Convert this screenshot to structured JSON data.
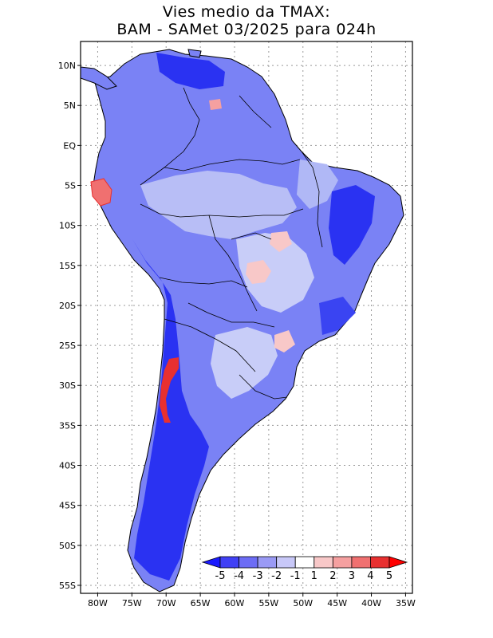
{
  "title": {
    "line1": "Vies medio da TMAX:",
    "line2": "BAM - SAMet 03/2025  para 024h"
  },
  "map": {
    "lat_ticks": [
      "10N",
      "5N",
      "EQ",
      "5S",
      "10S",
      "15S",
      "20S",
      "25S",
      "30S",
      "35S",
      "40S",
      "45S",
      "50S",
      "55S"
    ],
    "lon_ticks": [
      "80W",
      "75W",
      "70W",
      "65W",
      "60W",
      "55W",
      "50W",
      "45W",
      "40W",
      "35W"
    ],
    "lat_range": [
      -56,
      13
    ],
    "lon_range": [
      -82.5,
      -34
    ]
  },
  "colorbar": {
    "labels": [
      "-5",
      "-4",
      "-3",
      "-2",
      "-1",
      "1",
      "2",
      "3",
      "4",
      "5"
    ],
    "colors": [
      "#1a1aff",
      "#4040f5",
      "#6c6cf5",
      "#9a9af5",
      "#c8c8f8",
      "#ffffff",
      "#f8c8c8",
      "#f5a0a0",
      "#f07070",
      "#e83030",
      "#ff0000"
    ]
  }
}
